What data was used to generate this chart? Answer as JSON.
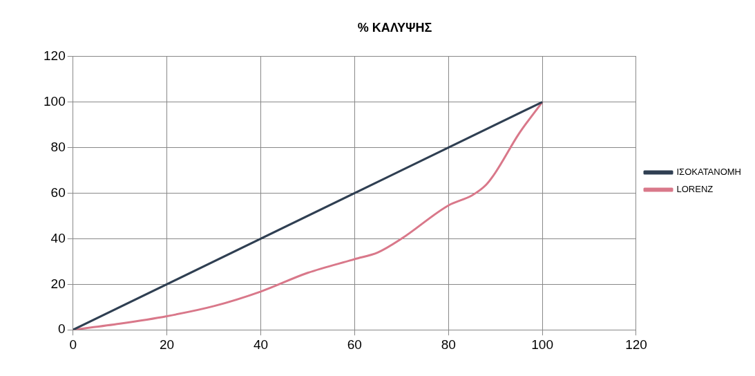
{
  "chart_data": {
    "type": "line",
    "title": "% ΚΑΛΥΨΗΣ",
    "xlim": [
      0,
      120
    ],
    "xticks": [
      0,
      20,
      40,
      60,
      80,
      100,
      120
    ],
    "ylim": [
      0,
      120
    ],
    "yticks": [
      0,
      20,
      40,
      60,
      80,
      100,
      120
    ],
    "grid": true,
    "legend": "right",
    "marker": "none",
    "line_style": "solid",
    "series": [
      {
        "name": "ΙΣΟΚΑΤΑΝΟΜΗ",
        "color": "#2f3f52",
        "x": [
          0,
          100
        ],
        "values": [
          0,
          100
        ]
      },
      {
        "name": "LORENZ",
        "color": "#d9788a",
        "x": [
          0,
          10,
          20,
          30,
          40,
          50,
          60,
          65,
          70,
          80,
          85,
          88,
          90,
          95,
          100
        ],
        "values": [
          0,
          2.7,
          6,
          10.4,
          16.8,
          25,
          31,
          34,
          40,
          54.6,
          59,
          63.6,
          69,
          86,
          100
        ]
      }
    ]
  }
}
